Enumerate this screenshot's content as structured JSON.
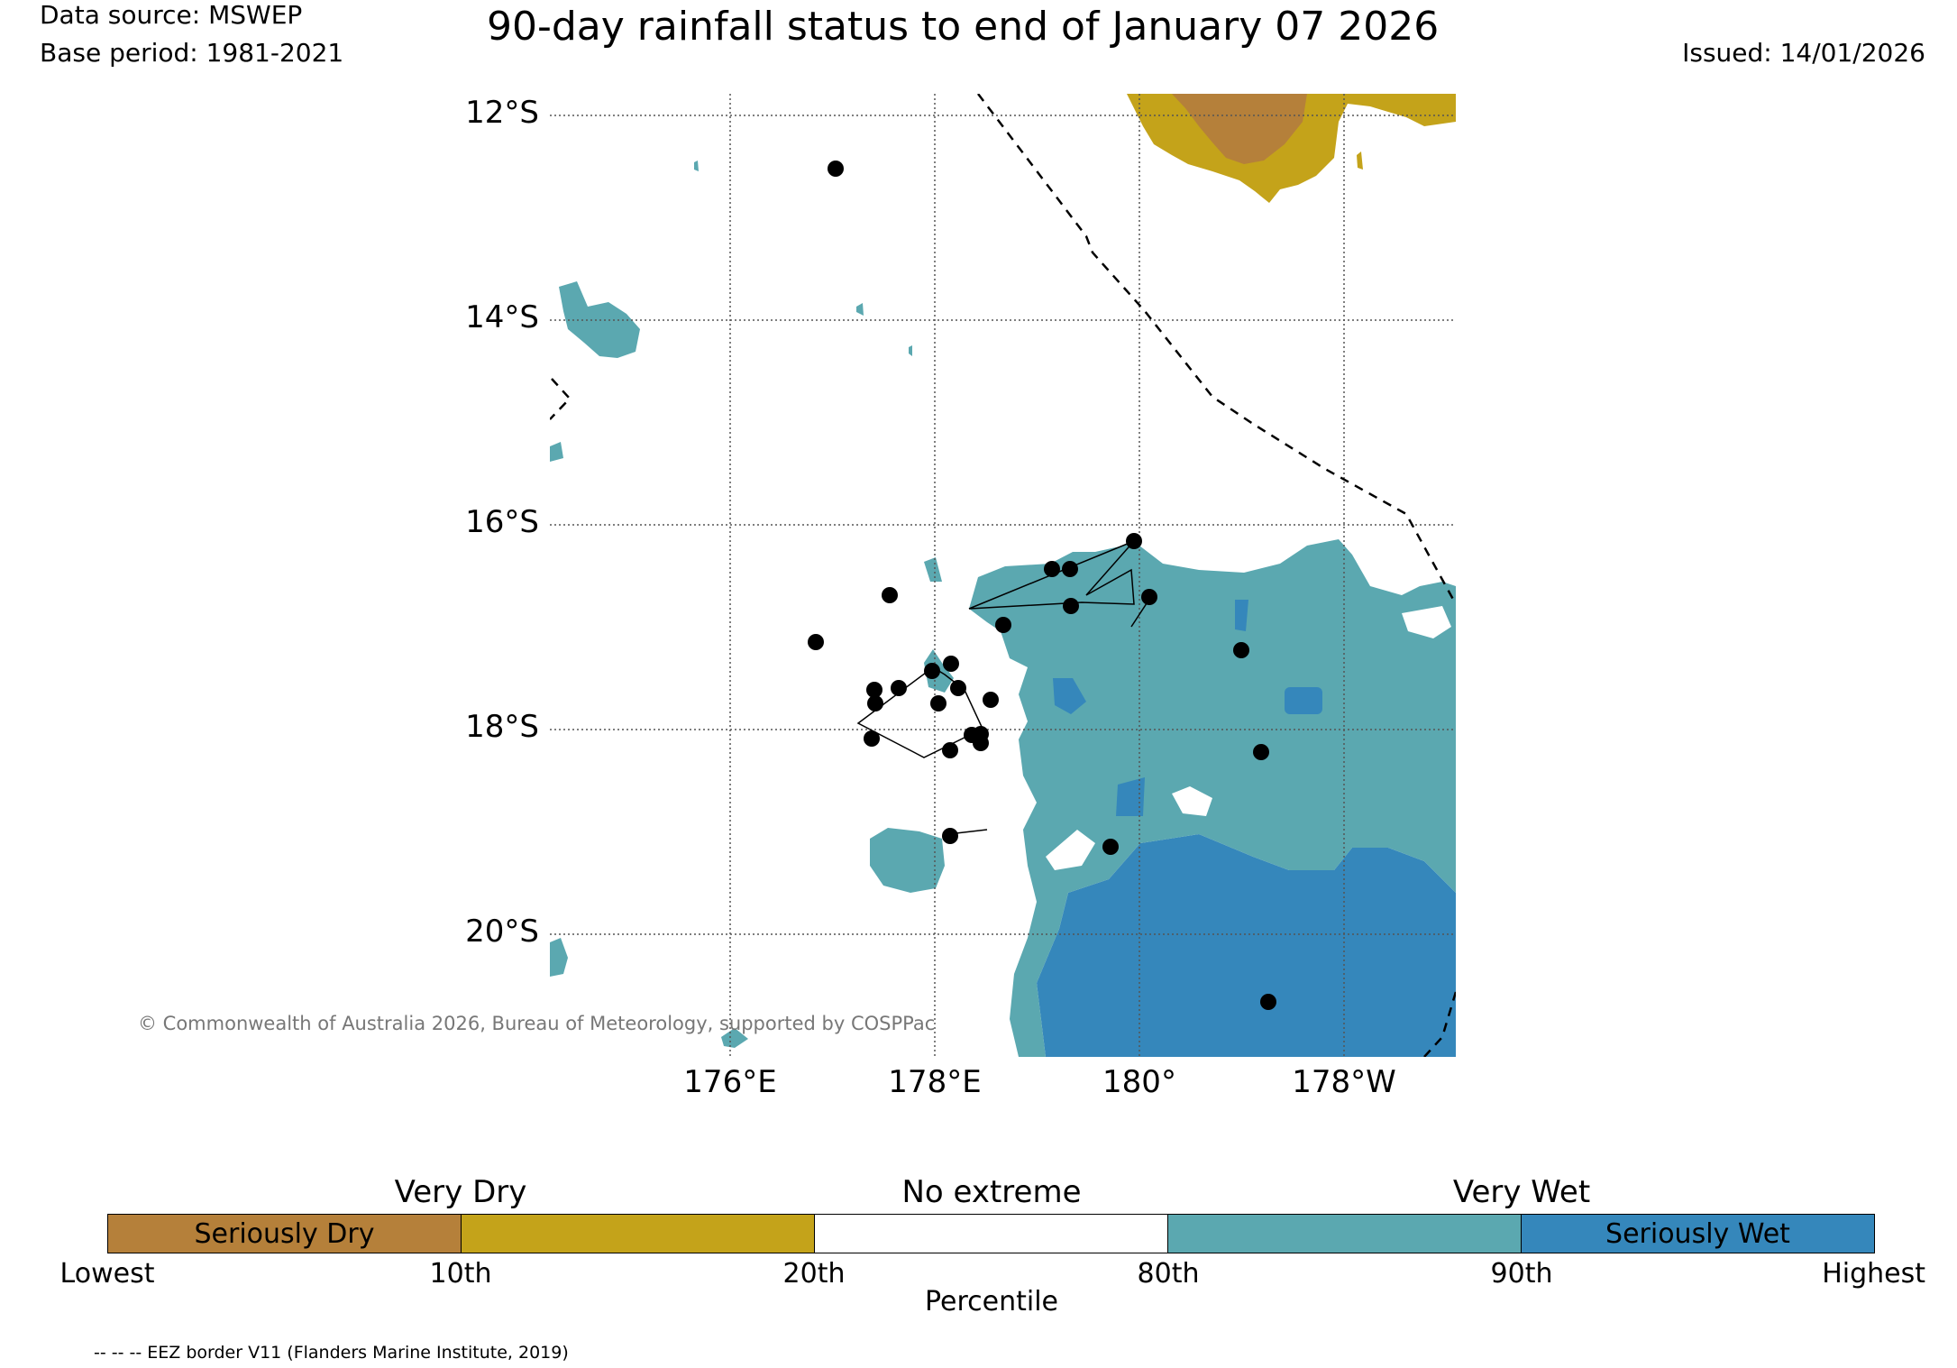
{
  "header": {
    "data_source": "Data source: MSWEP",
    "base_period": "Base period: 1981-2021",
    "title": "90-day rainfall status to end of January 07 2026",
    "issued": "Issued: 14/01/2026"
  },
  "map": {
    "lat_labels": [
      "12°S",
      "14°S",
      "16°S",
      "18°S",
      "20°S"
    ],
    "lon_labels": [
      "176°E",
      "178°E",
      "180°",
      "178°W"
    ],
    "copyright": "© Commonwealth of Australia 2026, Bureau of Meteorology, supported by COSPPac",
    "eez_note": "-- -- -- EEZ border V11 (Flanders Marine Institute, 2019)"
  },
  "legend": {
    "top_labels": [
      "Very Dry",
      "No extreme",
      "Very Wet"
    ],
    "bins": [
      {
        "label": "Seriously Dry",
        "color": "#b5803a"
      },
      {
        "label": "",
        "color": "#c4a31a"
      },
      {
        "label": "",
        "color": "#ffffff"
      },
      {
        "label": "",
        "color": "#5ba8b0"
      },
      {
        "label": "Seriously Wet",
        "color": "#3587bb"
      }
    ],
    "ticks": [
      "Lowest",
      "10th",
      "20th",
      "80th",
      "90th",
      "Highest"
    ],
    "axis_label": "Percentile"
  },
  "colors": {
    "seriously_dry": "#b5803a",
    "very_dry": "#c4a31a",
    "very_wet": "#5ba8b0",
    "seriously_wet": "#3587bb",
    "copyright_text": "#777777"
  }
}
